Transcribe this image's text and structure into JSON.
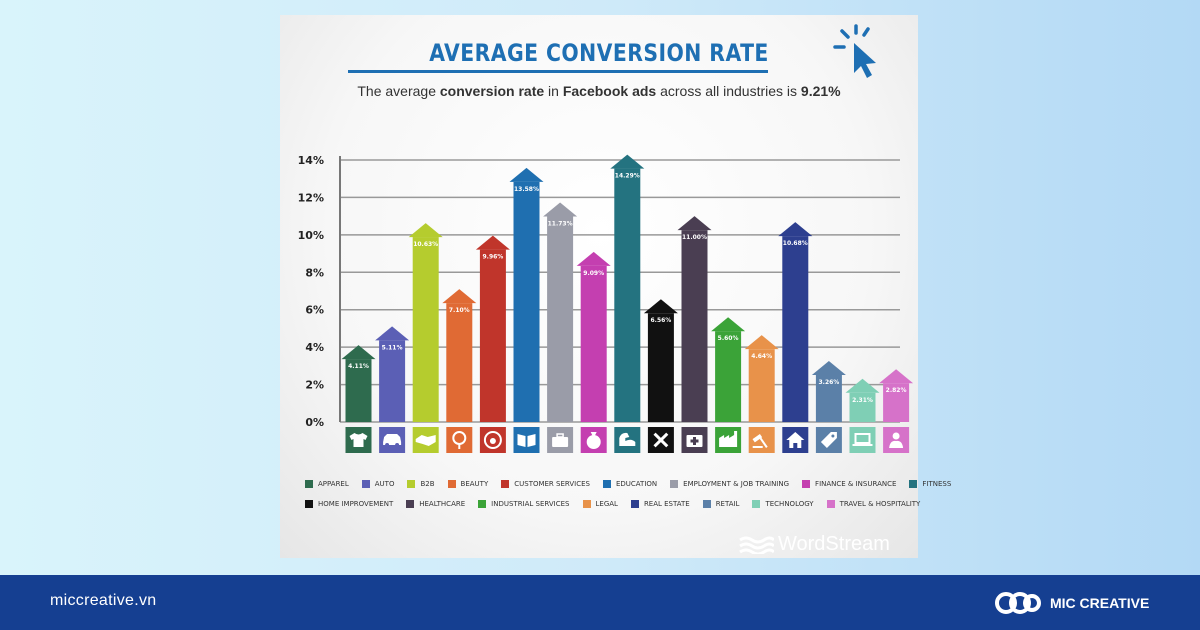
{
  "page": {
    "site_url": "miccreative.vn",
    "brand_name": "MIC CREATIVE",
    "watermark": "WordStream",
    "colors": {
      "background_footer": "#153f91",
      "title_blue": "#1e6fb3"
    }
  },
  "chart_data": {
    "type": "bar",
    "title": "AVERAGE CONVERSION RATE",
    "subtitle": {
      "prefix": "The average ",
      "term1": "conversion rate",
      "mid": " in ",
      "term2": "Facebook ads",
      "suffix": " across all industries is ",
      "value": "9.21%"
    },
    "ylabel": "",
    "xlabel": "",
    "ylim": [
      0,
      14
    ],
    "yticks": [
      "0%",
      "2%",
      "4%",
      "6%",
      "8%",
      "10%",
      "12%",
      "14%"
    ],
    "grid": true,
    "bar_style": "arrow",
    "legend_position": "bottom",
    "categories": [
      {
        "name": "APPAREL",
        "value": 4.11,
        "label": "4.11%",
        "color": "#2e6b4e",
        "icon": "shirt-icon"
      },
      {
        "name": "AUTO",
        "value": 5.11,
        "label": "5.11%",
        "color": "#5b5fb5",
        "icon": "car-icon"
      },
      {
        "name": "B2B",
        "value": 10.63,
        "label": "10.63%",
        "color": "#b5cc2e",
        "icon": "handshake-icon"
      },
      {
        "name": "BEAUTY",
        "value": 7.1,
        "label": "7.10%",
        "color": "#e06a34",
        "icon": "mirror-icon"
      },
      {
        "name": "CUSTOMER SERVICES",
        "value": 9.96,
        "label": "9.96%",
        "color": "#c0352b",
        "icon": "headset-icon"
      },
      {
        "name": "EDUCATION",
        "value": 13.58,
        "label": "13.58%",
        "color": "#1f6fb0",
        "icon": "book-icon"
      },
      {
        "name": "EMPLOYMENT & JOB TRAINING",
        "value": 11.73,
        "label": "11.73%",
        "color": "#9a9ca8",
        "icon": "briefcase-icon"
      },
      {
        "name": "FINANCE & INSURANCE",
        "value": 9.09,
        "label": "9.09%",
        "color": "#c43fb0",
        "icon": "money-bag-icon"
      },
      {
        "name": "FITNESS",
        "value": 14.29,
        "label": "14.29%",
        "color": "#247380",
        "icon": "bicep-icon"
      },
      {
        "name": "HOME IMPROVEMENT",
        "value": 6.56,
        "label": "6.56%",
        "color": "#111111",
        "icon": "tools-icon"
      },
      {
        "name": "HEALTHCARE",
        "value": 11.0,
        "label": "11.00%",
        "color": "#4a3e52",
        "icon": "first-aid-icon"
      },
      {
        "name": "INDUSTRIAL SERVICES",
        "value": 5.6,
        "label": "5.60%",
        "color": "#3ba338",
        "icon": "factory-icon"
      },
      {
        "name": "LEGAL",
        "value": 4.64,
        "label": "4.64%",
        "color": "#e8924a",
        "icon": "gavel-icon"
      },
      {
        "name": "REAL ESTATE",
        "value": 10.68,
        "label": "10.68%",
        "color": "#2d3f8f",
        "icon": "house-icon"
      },
      {
        "name": "RETAIL",
        "value": 3.26,
        "label": "3.26%",
        "color": "#5b80a8",
        "icon": "price-tag-icon"
      },
      {
        "name": "TECHNOLOGY",
        "value": 2.31,
        "label": "2.31%",
        "color": "#7fcfb5",
        "icon": "laptop-icon"
      },
      {
        "name": "TRAVEL & HOSPITALITY",
        "value": 2.82,
        "label": "2.82%",
        "color": "#d672c9",
        "icon": "traveler-icon"
      }
    ]
  }
}
